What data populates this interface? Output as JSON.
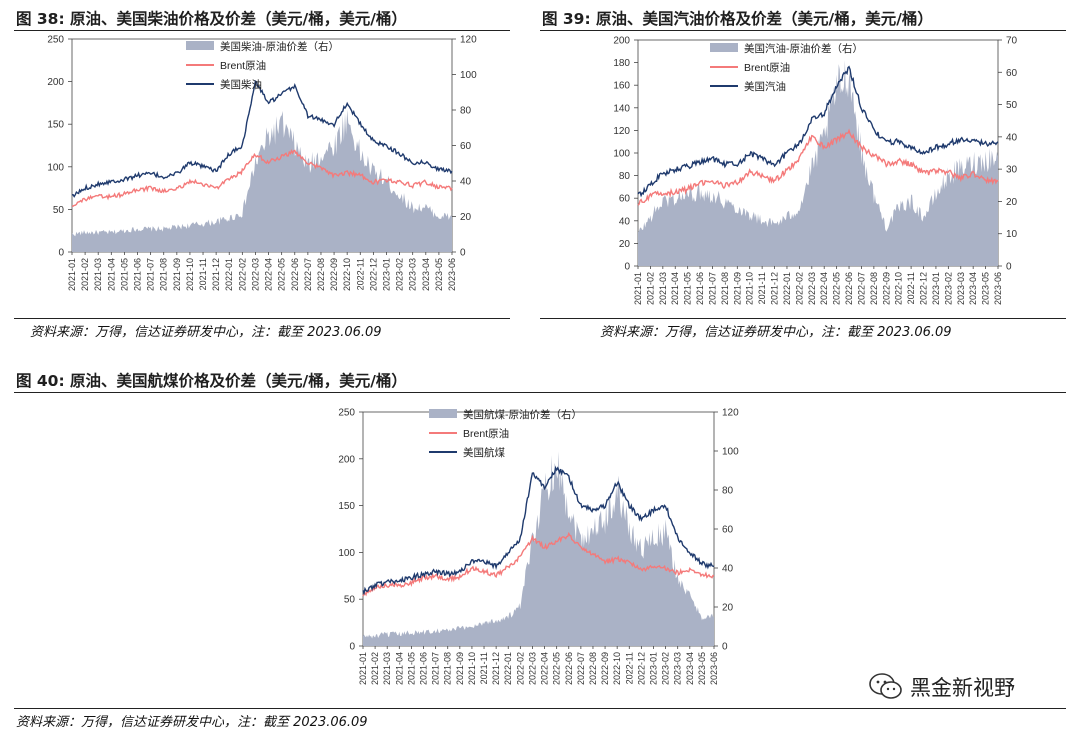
{
  "figures": [
    {
      "title": "图 38: 原油、美国柴油价格及价差（美元/桶，美元/桶）",
      "source": "资料来源：万得，信达证券研发中心，注：截至 2023.06.09"
    },
    {
      "title": "图 39: 原油、美国汽油价格及价差（美元/桶，美元/桶）",
      "source": "资料来源：万得，信达证券研发中心，注：截至 2023.06.09"
    },
    {
      "title": "图 40: 原油、美国航煤价格及价差（美元/桶，美元/桶）",
      "source": "资料来源：万得，信达证券研发中心，注：截至 2023.06.09"
    }
  ],
  "watermark": {
    "text": "黑金新视野",
    "icon": "wechat-icon"
  },
  "colors": {
    "spread": "#aab2c6",
    "brent": "#f47a7a",
    "product": "#1f3a6d"
  },
  "chart_data": [
    {
      "type": "area",
      "x": [
        "2021-01",
        "2021-02",
        "2021-03",
        "2021-04",
        "2021-05",
        "2021-06",
        "2021-07",
        "2021-08",
        "2021-09",
        "2021-10",
        "2021-11",
        "2021-12",
        "2022-01",
        "2022-02",
        "2022-03",
        "2022-04",
        "2022-05",
        "2022-06",
        "2022-07",
        "2022-08",
        "2022-09",
        "2022-10",
        "2022-11",
        "2022-12",
        "2023-01",
        "2023-02",
        "2023-03",
        "2023-04",
        "2023-05",
        "2023-06"
      ],
      "ylim_left": [
        0,
        250
      ],
      "yticks_left": [
        0,
        50,
        100,
        150,
        200,
        250
      ],
      "ylim_right": [
        0,
        120
      ],
      "yticks_right": [
        0,
        20,
        40,
        60,
        80,
        100,
        120
      ],
      "legend_position": "top-center",
      "series": [
        {
          "name": "美国柴油-原油价差（右）",
          "axis": "right",
          "kind": "area",
          "values": [
            10,
            11,
            11,
            11,
            12,
            13,
            13,
            13,
            14,
            15,
            16,
            17,
            19,
            22,
            50,
            65,
            72,
            60,
            48,
            55,
            60,
            75,
            55,
            45,
            40,
            32,
            25,
            25,
            20,
            20
          ]
        },
        {
          "name": "Brent原油",
          "axis": "left",
          "kind": "line",
          "values": [
            55,
            62,
            65,
            65,
            68,
            73,
            75,
            71,
            74,
            83,
            80,
            75,
            85,
            95,
            115,
            105,
            112,
            118,
            105,
            98,
            90,
            93,
            90,
            82,
            84,
            83,
            78,
            82,
            76,
            75
          ]
        },
        {
          "name": "美国柴油",
          "axis": "left",
          "kind": "line",
          "values": [
            65,
            75,
            80,
            83,
            85,
            90,
            92,
            88,
            92,
            105,
            100,
            95,
            115,
            125,
            200,
            175,
            185,
            195,
            160,
            155,
            150,
            175,
            150,
            130,
            125,
            115,
            105,
            105,
            97,
            95
          ]
        }
      ]
    },
    {
      "type": "area",
      "x": [
        "2021-01",
        "2021-02",
        "2021-03",
        "2021-04",
        "2021-05",
        "2021-06",
        "2021-07",
        "2021-08",
        "2021-09",
        "2021-10",
        "2021-11",
        "2021-12",
        "2022-01",
        "2022-02",
        "2022-03",
        "2022-04",
        "2022-05",
        "2022-06",
        "2022-07",
        "2022-08",
        "2022-09",
        "2022-10",
        "2022-11",
        "2022-12",
        "2023-01",
        "2023-02",
        "2023-03",
        "2023-04",
        "2023-05",
        "2023-06"
      ],
      "ylim_left": [
        0,
        200
      ],
      "yticks_left": [
        0,
        20,
        40,
        60,
        80,
        100,
        120,
        140,
        160,
        180,
        200
      ],
      "ylim_right": [
        0,
        70
      ],
      "yticks_right": [
        0,
        10,
        20,
        30,
        40,
        50,
        60,
        70
      ],
      "legend_position": "top-center",
      "series": [
        {
          "name": "美国汽油-原油价差（右）",
          "axis": "right",
          "kind": "area",
          "values": [
            10,
            15,
            20,
            21,
            22,
            23,
            22,
            20,
            18,
            16,
            14,
            13,
            15,
            18,
            30,
            40,
            55,
            60,
            35,
            22,
            12,
            18,
            20,
            15,
            22,
            28,
            30,
            32,
            33,
            34
          ]
        },
        {
          "name": "Brent原油",
          "axis": "left",
          "kind": "line",
          "values": [
            55,
            62,
            65,
            65,
            68,
            73,
            75,
            71,
            74,
            83,
            80,
            75,
            85,
            95,
            115,
            105,
            112,
            118,
            105,
            98,
            90,
            93,
            90,
            82,
            84,
            83,
            78,
            82,
            76,
            75
          ]
        },
        {
          "name": "美国汽油",
          "axis": "left",
          "kind": "line",
          "values": [
            62,
            72,
            82,
            85,
            88,
            92,
            95,
            90,
            90,
            100,
            95,
            90,
            100,
            108,
            130,
            135,
            160,
            175,
            140,
            120,
            110,
            110,
            105,
            100,
            105,
            108,
            112,
            110,
            108,
            110
          ]
        }
      ]
    },
    {
      "type": "area",
      "x": [
        "2021-01",
        "2021-02",
        "2021-03",
        "2021-04",
        "2021-05",
        "2021-06",
        "2021-07",
        "2021-08",
        "2021-09",
        "2021-10",
        "2021-11",
        "2021-12",
        "2022-01",
        "2022-02",
        "2022-03",
        "2022-04",
        "2022-05",
        "2022-06",
        "2022-07",
        "2022-08",
        "2022-09",
        "2022-10",
        "2022-11",
        "2022-12",
        "2023-01",
        "2023-02",
        "2023-03",
        "2023-04",
        "2023-05",
        "2023-06"
      ],
      "ylim_left": [
        0,
        250
      ],
      "yticks_left": [
        0,
        50,
        100,
        150,
        200,
        250
      ],
      "ylim_right": [
        0,
        120
      ],
      "yticks_right": [
        0,
        20,
        40,
        60,
        80,
        100,
        120
      ],
      "legend_position": "top-center",
      "series": [
        {
          "name": "美国航煤-原油价差（右）",
          "axis": "right",
          "kind": "area",
          "values": [
            5,
            5,
            6,
            6,
            7,
            7,
            8,
            8,
            9,
            10,
            12,
            13,
            15,
            20,
            55,
            80,
            95,
            70,
            55,
            60,
            65,
            80,
            60,
            50,
            55,
            58,
            35,
            25,
            15,
            15
          ]
        },
        {
          "name": "Brent原油",
          "axis": "left",
          "kind": "line",
          "values": [
            55,
            62,
            65,
            65,
            68,
            73,
            75,
            71,
            74,
            83,
            80,
            75,
            85,
            95,
            115,
            105,
            112,
            118,
            105,
            98,
            90,
            93,
            90,
            82,
            84,
            83,
            78,
            82,
            76,
            75
          ]
        },
        {
          "name": "美国航煤",
          "axis": "left",
          "kind": "line",
          "values": [
            58,
            65,
            68,
            70,
            73,
            77,
            80,
            77,
            80,
            90,
            90,
            85,
            100,
            115,
            185,
            170,
            190,
            180,
            150,
            145,
            150,
            175,
            150,
            135,
            145,
            150,
            115,
            100,
            88,
            85
          ]
        }
      ]
    }
  ]
}
